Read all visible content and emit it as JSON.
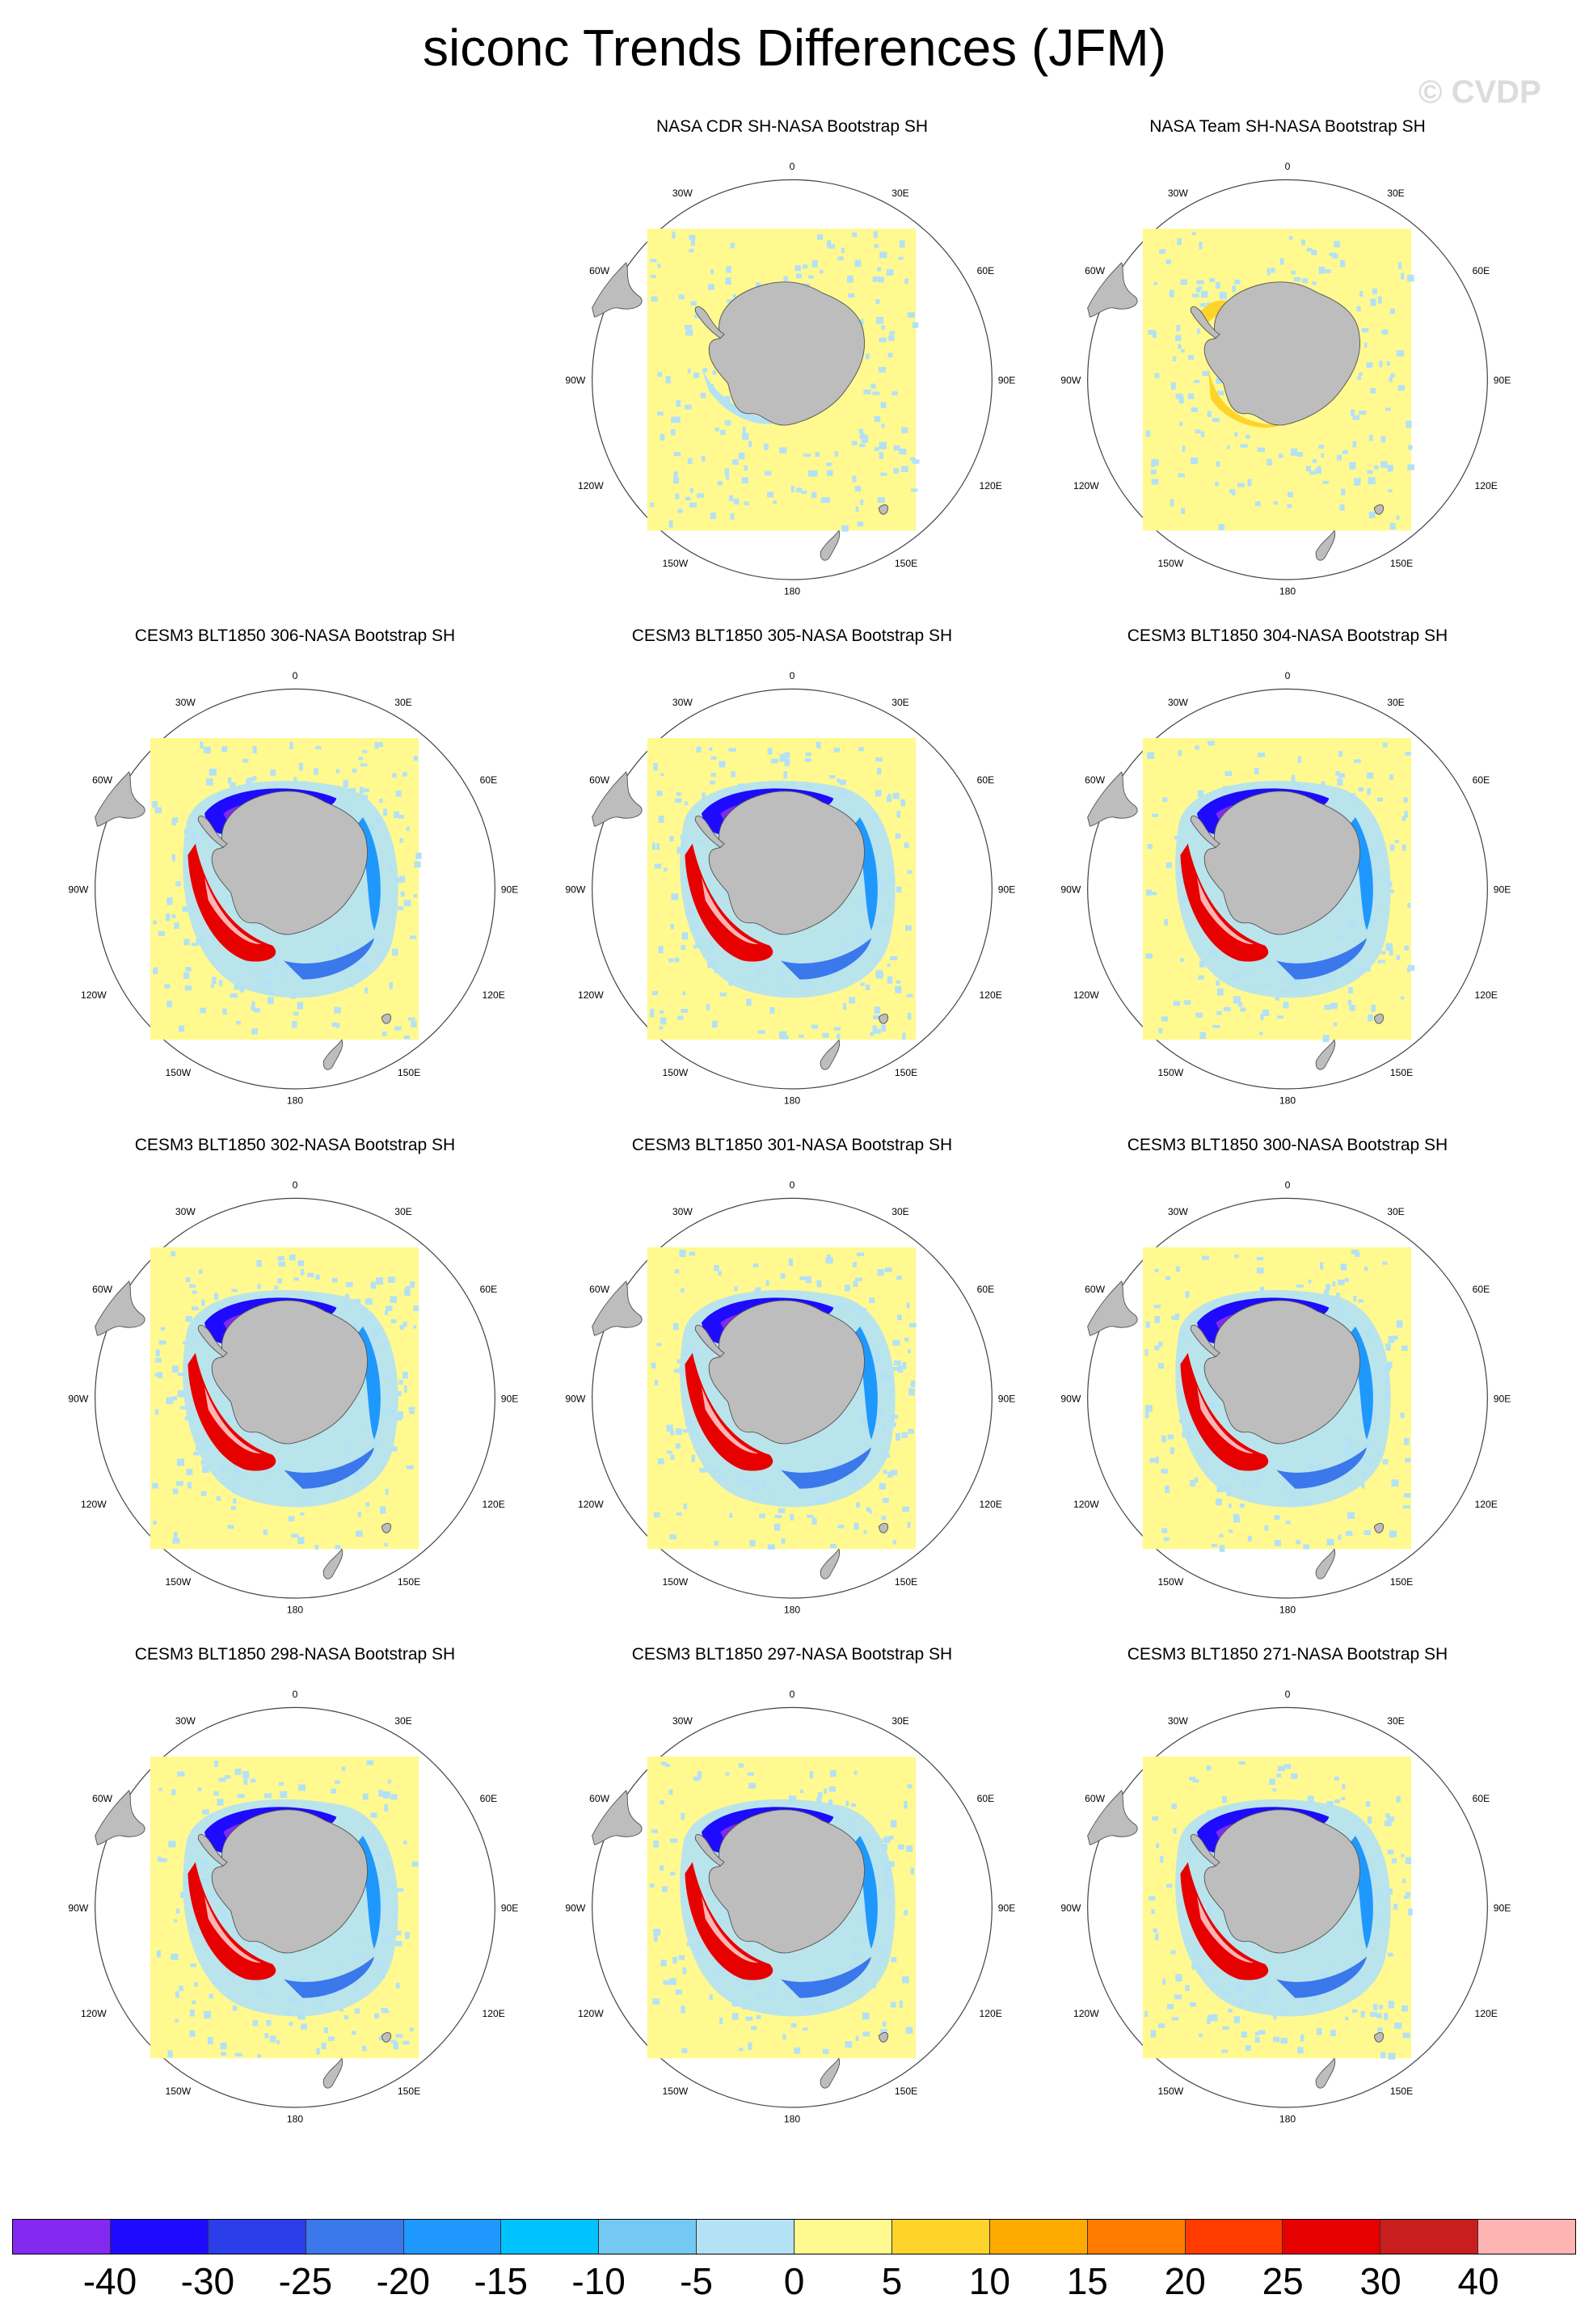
{
  "figure_title": "siconc Trends Differences (JFM)",
  "watermark": "© CVDP",
  "map_labels": {
    "north": "0",
    "lon30w": "30W",
    "lon30e": "30E",
    "lon60w": "60W",
    "lon60e": "60E",
    "lon90w": "90W",
    "lon90e": "90E",
    "lon120w": "120W",
    "lon120e": "120E",
    "lon150w": "150W",
    "lon150e": "150E",
    "south": "180"
  },
  "panels": [
    {
      "title": "NASA CDR SH-NASA Bootstrap SH",
      "pattern": "obs"
    },
    {
      "title": "NASA Team SH-NASA Bootstrap SH",
      "pattern": "obs-warm"
    },
    {
      "title": "CESM3 BLT1850 306-NASA Bootstrap SH",
      "pattern": "model"
    },
    {
      "title": "CESM3 BLT1850 305-NASA Bootstrap SH",
      "pattern": "model"
    },
    {
      "title": "CESM3 BLT1850 304-NASA Bootstrap SH",
      "pattern": "model"
    },
    {
      "title": "CESM3 BLT1850 302-NASA Bootstrap SH",
      "pattern": "model"
    },
    {
      "title": "CESM3 BLT1850 301-NASA Bootstrap SH",
      "pattern": "model"
    },
    {
      "title": "CESM3 BLT1850 300-NASA Bootstrap SH",
      "pattern": "model"
    },
    {
      "title": "CESM3 BLT1850 298-NASA Bootstrap SH",
      "pattern": "model"
    },
    {
      "title": "CESM3 BLT1850 297-NASA Bootstrap SH",
      "pattern": "model"
    },
    {
      "title": "CESM3 BLT1850 271-NASA Bootstrap SH",
      "pattern": "model"
    }
  ],
  "colorbar": {
    "colors": [
      "#8329f0",
      "#1e0aff",
      "#2c3dea",
      "#3a78eb",
      "#1f98fd",
      "#00c2ff",
      "#74c9f2",
      "#b3e1f6",
      "#fff990",
      "#ffd42a",
      "#ffaa00",
      "#ff7c00",
      "#ff3b00",
      "#e60000",
      "#c81e1e",
      "#ffb4b4"
    ],
    "labels": [
      "-40",
      "-30",
      "-25",
      "-20",
      "-15",
      "-10",
      "-5",
      "0",
      "5",
      "10",
      "15",
      "20",
      "25",
      "30",
      "40"
    ]
  },
  "colors": {
    "land": "#bdbdbd",
    "background_zero": "#fff990",
    "light_negative": "#b3e1f6"
  }
}
